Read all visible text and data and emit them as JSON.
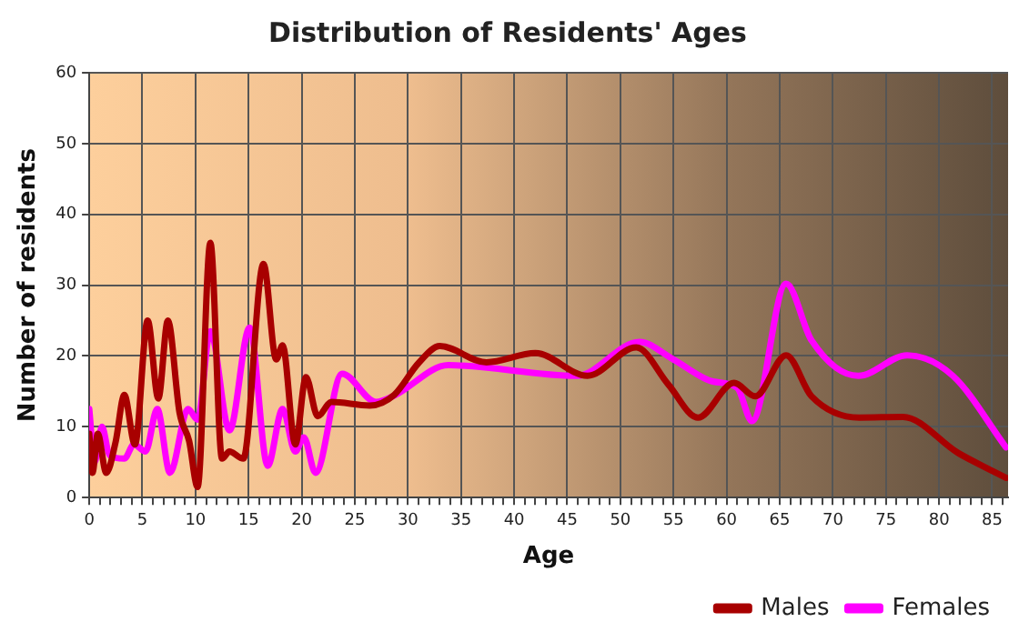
{
  "chart_data": {
    "type": "line",
    "title": "Distribution of Residents' Ages",
    "xlabel": "Age",
    "ylabel": "Number of residents",
    "xlim": [
      0,
      86.5
    ],
    "ylim": [
      0,
      60
    ],
    "yticks": [
      0,
      10,
      20,
      30,
      40,
      50,
      60
    ],
    "xticks": [
      0,
      {
        "value": 1,
        "label": null
      },
      {
        "value": 2,
        "label": null
      },
      {
        "value": 3,
        "label": null
      },
      {
        "value": 4,
        "label": null
      },
      5,
      {
        "value": 6,
        "label": null
      },
      {
        "value": 7,
        "label": null
      },
      {
        "value": 8,
        "label": null
      },
      {
        "value": 9,
        "label": null
      },
      10,
      {
        "value": 11,
        "label": null
      },
      {
        "value": 12,
        "label": null
      },
      {
        "value": 13,
        "label": null
      },
      {
        "value": 14,
        "label": null
      },
      15,
      {
        "value": 16,
        "label": null
      },
      {
        "value": 17,
        "label": null
      },
      {
        "value": 18,
        "label": null
      },
      {
        "value": 19,
        "label": null
      },
      20,
      {
        "value": 21,
        "label": null
      },
      {
        "value": 22,
        "label": null
      },
      {
        "value": 23,
        "label": null
      },
      {
        "value": 24,
        "label": null
      },
      25,
      {
        "value": 26,
        "label": null
      },
      {
        "value": 27,
        "label": null
      },
      {
        "value": 28,
        "label": null
      },
      {
        "value": 29,
        "label": null
      },
      30,
      {
        "value": 31,
        "label": null
      },
      {
        "value": 32,
        "label": null
      },
      {
        "value": 33,
        "label": null
      },
      {
        "value": 34,
        "label": null
      },
      35,
      {
        "value": 36,
        "label": null
      },
      {
        "value": 37,
        "label": null
      },
      {
        "value": 38,
        "label": null
      },
      {
        "value": 39,
        "label": null
      },
      40,
      {
        "value": 41,
        "label": null
      },
      {
        "value": 42,
        "label": null
      },
      {
        "value": 43,
        "label": null
      },
      {
        "value": 44,
        "label": null
      },
      45,
      {
        "value": 46,
        "label": null
      },
      {
        "value": 47,
        "label": null
      },
      {
        "value": 48,
        "label": null
      },
      {
        "value": 49,
        "label": null
      },
      50,
      {
        "value": 51,
        "label": null
      },
      {
        "value": 52,
        "label": null
      },
      {
        "value": 53,
        "label": null
      },
      {
        "value": 54,
        "label": null
      },
      55,
      {
        "value": 56,
        "label": null
      },
      {
        "value": 57,
        "label": null
      },
      {
        "value": 58,
        "label": null
      },
      {
        "value": 59,
        "label": null
      },
      60,
      {
        "value": 61,
        "label": null
      },
      {
        "value": 62,
        "label": null
      },
      {
        "value": 63,
        "label": null
      },
      {
        "value": 64,
        "label": null
      },
      65,
      {
        "value": 66,
        "label": null
      },
      {
        "value": 67,
        "label": null
      },
      {
        "value": 68,
        "label": null
      },
      {
        "value": 69,
        "label": null
      },
      70,
      {
        "value": 71,
        "label": null
      },
      {
        "value": 72,
        "label": null
      },
      {
        "value": 73,
        "label": null
      },
      {
        "value": 74,
        "label": null
      },
      75,
      {
        "value": 76,
        "label": null
      },
      {
        "value": 77,
        "label": null
      },
      {
        "value": 78,
        "label": null
      },
      {
        "value": 79,
        "label": null
      },
      80,
      {
        "value": 81,
        "label": null
      },
      {
        "value": 82,
        "label": null
      },
      {
        "value": 83,
        "label": null
      },
      {
        "value": 84,
        "label": null
      },
      85,
      {
        "value": 86,
        "label": null
      }
    ],
    "grid": true,
    "legend": "bottom right",
    "marker": "none",
    "line_style": "solid",
    "series": [
      {
        "name": "Males",
        "color": "#a80000",
        "x": [
          0,
          0.3,
          0.8,
          1.6,
          2.5,
          3.3,
          4.3,
          5.5,
          6.5,
          7.4,
          8.5,
          9.4,
          10.2,
          11.4,
          12.5,
          13.2,
          14.5,
          16.4,
          17.6,
          18.2,
          19.4,
          20.4,
          21.5,
          22.8,
          26.4,
          28.7,
          31,
          33,
          37.4,
          42,
          46.9,
          51.5,
          54.5,
          57.3,
          60.7,
          62.7,
          65.6,
          68,
          72.5,
          76.6,
          81.8,
          86.3
        ],
        "values": [
          9,
          3.5,
          9,
          3.5,
          8,
          14.5,
          7.5,
          25,
          14,
          25,
          12,
          8,
          1.5,
          36,
          5.5,
          6.5,
          5.5,
          33,
          19.5,
          21.5,
          7.5,
          17,
          11.5,
          13.5,
          13,
          14.5,
          19,
          21.4,
          19.1,
          20.4,
          17.2,
          21.2,
          16,
          11.3,
          16.2,
          14.3,
          20.1,
          14.3,
          11.3,
          11.4,
          6.3,
          2.8
        ]
      },
      {
        "name": "Females",
        "color": "#ff00ff",
        "x": [
          0,
          0.5,
          1.2,
          1.9,
          3.3,
          4.2,
          5.3,
          6.4,
          7.6,
          9.3,
          10.2,
          11.4,
          13.2,
          15.1,
          16.8,
          18.2,
          19.4,
          20.2,
          21.3,
          23.8,
          27,
          28.7,
          33.8,
          45.9,
          51.8,
          55,
          58.7,
          61,
          62.4,
          65.6,
          68,
          72.4,
          77,
          81.3,
          86.3
        ],
        "values": [
          12.5,
          5,
          10,
          6,
          5.5,
          7.5,
          6.5,
          12.5,
          3.5,
          12.5,
          11,
          23.5,
          9.5,
          24,
          4.5,
          12.5,
          6.5,
          8.5,
          3.5,
          17.5,
          13.5,
          14.4,
          18.7,
          17.2,
          22,
          19.5,
          16.4,
          15.5,
          10.8,
          30.2,
          22.2,
          17.2,
          20.1,
          17.2,
          7.1
        ]
      }
    ]
  }
}
